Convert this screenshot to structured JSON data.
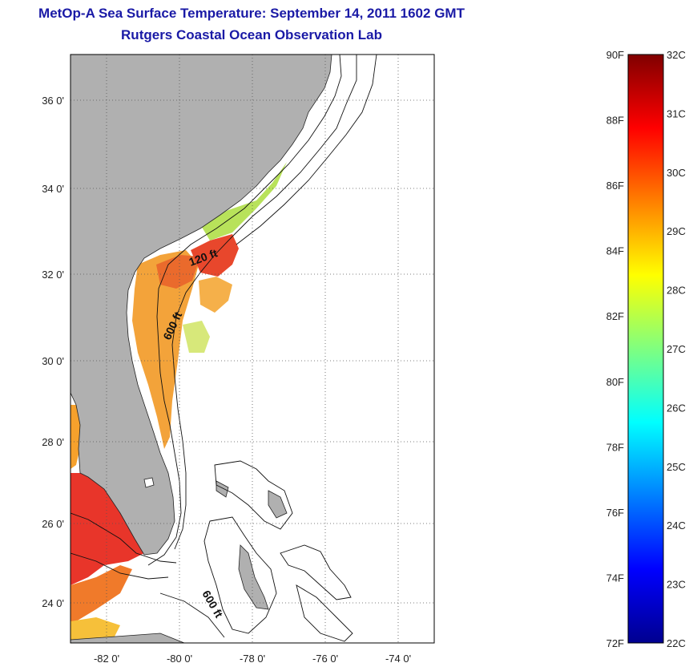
{
  "title": {
    "line1": "MetOp-A Sea Surface Temperature:  September 14, 2011 1602 GMT",
    "line2": "Rutgers Coastal Ocean Observation Lab"
  },
  "map": {
    "lon_ticks": [
      "-82 0'",
      "-80 0'",
      "-78 0'",
      "-76 0'",
      "-74 0'"
    ],
    "lat_ticks": [
      "36 0'",
      "34 0'",
      "32 0'",
      "30 0'",
      "28 0'",
      "26 0'",
      "24 0'"
    ],
    "contour_labels": [
      "120 ft",
      "600 ft",
      "600 ft"
    ],
    "land_color": "#b0b0b0",
    "grid": "dotted"
  },
  "colorbar": {
    "f_labels": [
      "90F",
      "88F",
      "86F",
      "84F",
      "82F",
      "80F",
      "78F",
      "76F",
      "74F",
      "72F"
    ],
    "c_labels": [
      "32C",
      "31C",
      "30C",
      "29C",
      "28C",
      "27C",
      "26C",
      "25C",
      "24C",
      "23C",
      "22C"
    ],
    "colormap": "jet"
  }
}
